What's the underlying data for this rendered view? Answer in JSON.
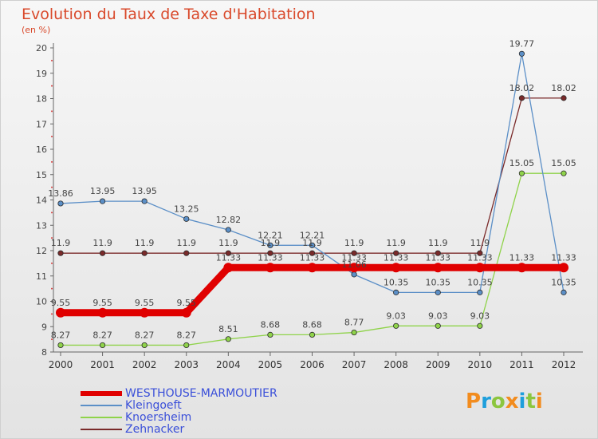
{
  "title": "Evolution du Taux de Taxe d'Habitation",
  "unit": "(en %)",
  "logo": {
    "text": "Proxiti",
    "colors": [
      "#f28c1e",
      "#1e9fdc",
      "#8cc63f"
    ]
  },
  "chart_data": {
    "type": "line",
    "x": [
      "2000",
      "2001",
      "2002",
      "2003",
      "2004",
      "2005",
      "2006",
      "2007",
      "2008",
      "2009",
      "2010",
      "2011",
      "2012"
    ],
    "ylim": [
      8,
      20
    ],
    "yticks": [
      8,
      9,
      10,
      11,
      12,
      13,
      14,
      15,
      16,
      17,
      18,
      19,
      20
    ],
    "grid": false,
    "legend_position": "bottom-left",
    "series": [
      {
        "name": "WESTHOUSE-MARMOUTIER",
        "color": "#e00000",
        "values": [
          9.55,
          9.55,
          9.55,
          9.55,
          11.33,
          11.33,
          11.33,
          11.33,
          11.33,
          11.33,
          11.33,
          11.33,
          11.33
        ],
        "labels": [
          "9.55",
          "9.55",
          "9.55",
          "9.55",
          "11.33",
          "11.33",
          "11.33",
          "11.33",
          "11.33",
          "11.33",
          "11.33",
          "11.33",
          "11.33"
        ]
      },
      {
        "name": "Kleingoeft",
        "color": "#5b8fc7",
        "values": [
          13.86,
          13.95,
          13.95,
          13.25,
          12.82,
          12.21,
          12.21,
          11.06,
          10.35,
          10.35,
          10.35,
          19.77,
          10.35
        ],
        "labels": [
          "13.86",
          "13.95",
          "13.95",
          "13.25",
          "12.82",
          "12.21",
          "12.21",
          "11.06",
          "10.35",
          "10.35",
          "10.35",
          "19.77",
          "10.35"
        ]
      },
      {
        "name": "Knoersheim",
        "color": "#8fd34a",
        "values": [
          8.27,
          8.27,
          8.27,
          8.27,
          8.51,
          8.68,
          8.68,
          8.77,
          9.03,
          9.03,
          9.03,
          15.05,
          15.05
        ],
        "labels": [
          "8.27",
          "8.27",
          "8.27",
          "8.27",
          "8.51",
          "8.68",
          "8.68",
          "8.77",
          "9.03",
          "9.03",
          "9.03",
          "15.05",
          "15.05"
        ]
      },
      {
        "name": "Zehnacker",
        "color": "#7a2a2a",
        "values": [
          11.9,
          11.9,
          11.9,
          11.9,
          11.9,
          11.9,
          11.9,
          11.9,
          11.9,
          11.9,
          11.9,
          18.02,
          18.02
        ],
        "labels": [
          "11.9",
          "11.9",
          "11.9",
          "11.9",
          "11.9",
          "11.9",
          "11.9",
          "11.9",
          "11.9",
          "11.9",
          "11.9",
          "18.02",
          "18.02"
        ]
      }
    ]
  }
}
